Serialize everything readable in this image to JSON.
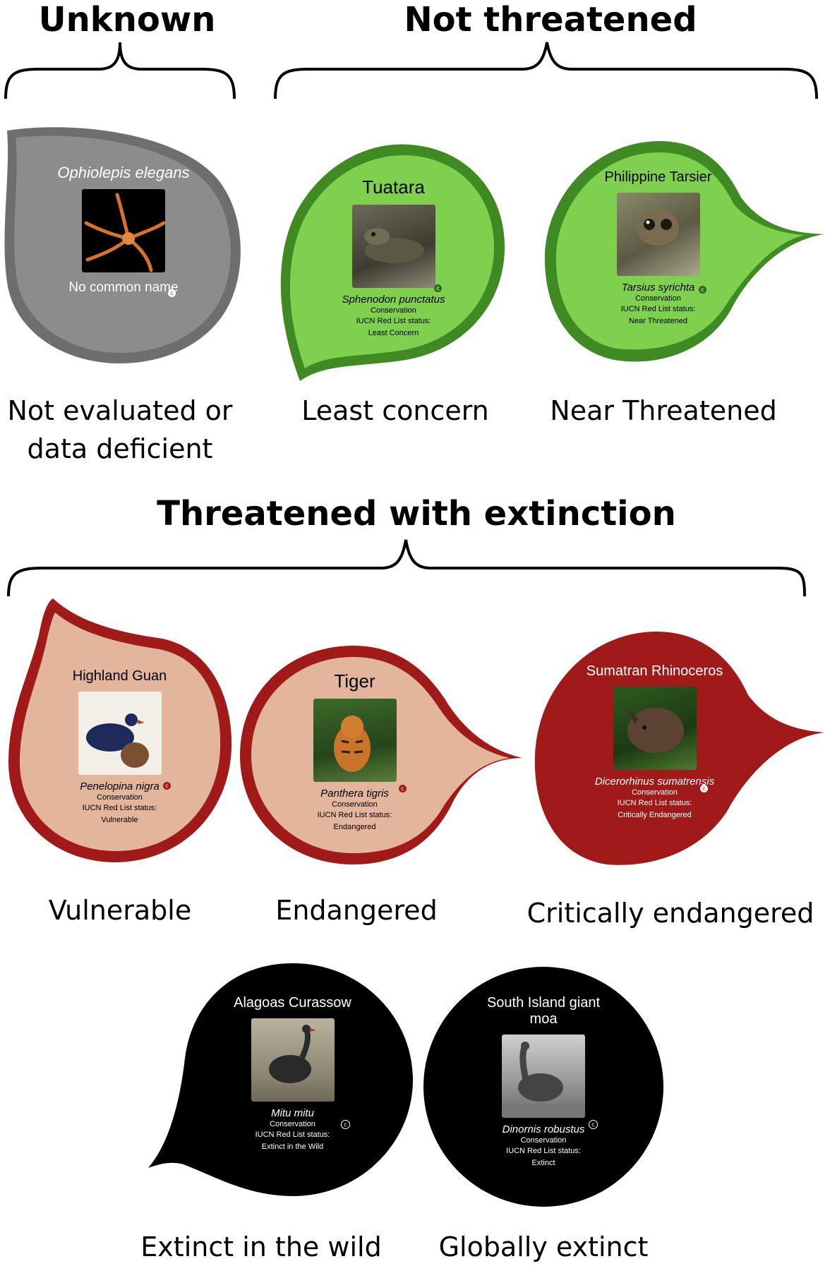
{
  "groups": {
    "unknown": "Unknown",
    "not_threatened": "Not threatened",
    "threatened": "Threatened with extinction"
  },
  "leaves": {
    "ne": {
      "name": "Ophiolepis elegans",
      "common": "No common name",
      "category": "Not evaluated or data deficient",
      "color": "#7a7a7a"
    },
    "lc": {
      "name": "Tuatara",
      "scientific": "Sphenodon punctatus",
      "conservation": "Conservation",
      "iucn": "IUCN Red List status:",
      "status": "Least Concern",
      "category": "Least concern",
      "color": "#7fd04f"
    },
    "nt": {
      "name": "Philippine Tarsier",
      "scientific": "Tarsius syrichta",
      "conservation": "Conservation",
      "iucn": "IUCN Red List status:",
      "status": "Near Threatened",
      "category": "Near Threatened",
      "color": "#7fd04f"
    },
    "vu": {
      "name": "Highland Guan",
      "scientific": "Penelopina nigra",
      "conservation": "Conservation",
      "iucn": "IUCN Red List status:",
      "status": "Vulnerable",
      "category": "Vulnerable",
      "color": "#e3b59d"
    },
    "en": {
      "name": "Tiger",
      "scientific": "Panthera tigris",
      "conservation": "Conservation",
      "iucn": "IUCN Red List status:",
      "status": "Endangered",
      "category": "Endangered",
      "color": "#e3b59d"
    },
    "cr": {
      "name": "Sumatran Rhinoceros",
      "scientific": "Dicerorhinus sumatrensis",
      "conservation": "Conservation",
      "iucn": "IUCN Red List status:",
      "status": "Critically Endangered",
      "category": "Critically endangered",
      "color": "#a01a1a"
    },
    "ew": {
      "name": "Alagoas Curassow",
      "scientific": "Mitu mitu",
      "conservation": "Conservation",
      "iucn": "IUCN Red List status:",
      "status": "Extinct in the Wild",
      "category": "Extinct in the wild",
      "color": "#000000"
    },
    "ex": {
      "name": "South Island giant moa",
      "scientific": "Dinornis robustus",
      "conservation": "Conservation",
      "iucn": "IUCN Red List status:",
      "status": "Extinct",
      "category": "Globally extinct",
      "color": "#000000"
    }
  },
  "copyright_mark": "c"
}
